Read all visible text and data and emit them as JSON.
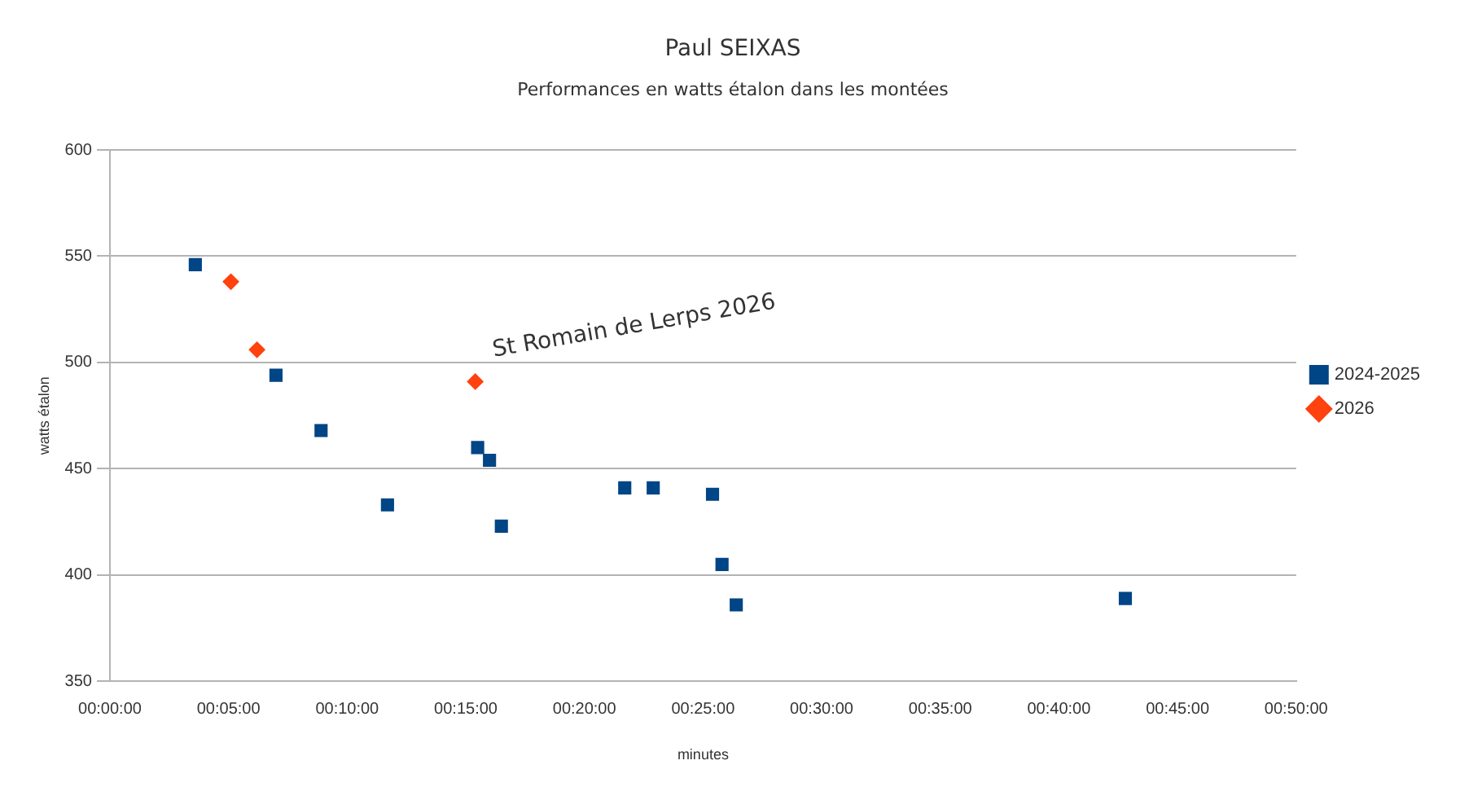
{
  "chart_data": {
    "type": "scatter",
    "title": "Paul SEIXAS",
    "subtitle": "Performances en watts étalon dans les montées",
    "xlabel": "minutes",
    "ylabel": "watts étalon",
    "xlim": [
      0,
      50
    ],
    "xticks": [
      {
        "value": 0,
        "label": "00:00:00"
      },
      {
        "value": 5,
        "label": "00:05:00"
      },
      {
        "value": 10,
        "label": "00:10:00"
      },
      {
        "value": 15,
        "label": "00:15:00"
      },
      {
        "value": 20,
        "label": "00:20:00"
      },
      {
        "value": 25,
        "label": "00:25:00"
      },
      {
        "value": 30,
        "label": "00:30:00"
      },
      {
        "value": 35,
        "label": "00:35:00"
      },
      {
        "value": 40,
        "label": "00:40:00"
      },
      {
        "value": 45,
        "label": "00:45:00"
      },
      {
        "value": 50,
        "label": "00:50:00"
      }
    ],
    "ylim": [
      350,
      600
    ],
    "yticks": [
      350,
      400,
      450,
      500,
      550,
      600
    ],
    "grid": "y",
    "legend": "right",
    "series": [
      {
        "name": "2024-2025",
        "color": "#004586",
        "marker": "square",
        "x": [
          3.6,
          7.0,
          8.9,
          11.7,
          15.5,
          16.0,
          16.5,
          21.7,
          22.9,
          25.4,
          25.8,
          26.4,
          42.8
        ],
        "values": [
          546,
          494,
          468,
          433,
          460,
          454,
          423,
          441,
          441,
          438,
          405,
          386,
          389
        ]
      },
      {
        "name": "2026",
        "color": "#ff420e",
        "marker": "diamond",
        "x": [
          5.1,
          6.2,
          15.4
        ],
        "values": [
          538,
          506,
          491
        ]
      }
    ],
    "annotations": [
      {
        "text": "St Romain de Lerps 2026",
        "x": 15.4,
        "y": 491
      }
    ]
  }
}
